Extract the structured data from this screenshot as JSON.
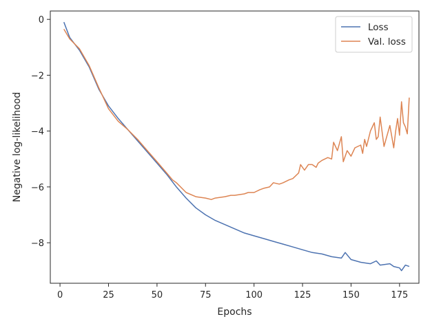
{
  "chart_data": {
    "type": "line",
    "title": "",
    "xlabel": "Epochs",
    "ylabel": "Negative log-likelihood",
    "xlim": [
      -5,
      185
    ],
    "ylim": [
      -9.45,
      0.3
    ],
    "xticks": [
      0,
      25,
      50,
      75,
      100,
      125,
      150,
      175
    ],
    "yticks": [
      0,
      -2,
      -4,
      -6,
      -8
    ],
    "grid": false,
    "legend_position": "top-right",
    "series": [
      {
        "name": "Loss",
        "color": "#4c72b0",
        "x": [
          2,
          5,
          10,
          15,
          20,
          25,
          30,
          35,
          40,
          45,
          50,
          55,
          60,
          65,
          70,
          75,
          80,
          85,
          90,
          95,
          100,
          105,
          110,
          115,
          120,
          125,
          130,
          135,
          140,
          145,
          147,
          150,
          155,
          160,
          163,
          165,
          170,
          172,
          175,
          176,
          178,
          180
        ],
        "y": [
          -0.1,
          -0.65,
          -1.1,
          -1.7,
          -2.5,
          -3.1,
          -3.55,
          -3.95,
          -4.35,
          -4.75,
          -5.15,
          -5.55,
          -6.0,
          -6.4,
          -6.75,
          -7.0,
          -7.2,
          -7.35,
          -7.5,
          -7.65,
          -7.75,
          -7.85,
          -7.95,
          -8.05,
          -8.15,
          -8.25,
          -8.35,
          -8.4,
          -8.5,
          -8.55,
          -8.35,
          -8.6,
          -8.7,
          -8.75,
          -8.65,
          -8.8,
          -8.75,
          -8.85,
          -8.9,
          -9.0,
          -8.8,
          -8.85
        ]
      },
      {
        "name": "Val. loss",
        "color": "#dd8452",
        "x": [
          2,
          5,
          10,
          15,
          20,
          25,
          30,
          35,
          40,
          45,
          50,
          55,
          58,
          60,
          65,
          70,
          75,
          78,
          80,
          85,
          88,
          90,
          95,
          97,
          100,
          103,
          105,
          108,
          110,
          113,
          115,
          118,
          120,
          123,
          124,
          126,
          128,
          130,
          132,
          133,
          135,
          138,
          140,
          141,
          143,
          145,
          146,
          148,
          150,
          152,
          155,
          156,
          157,
          158,
          160,
          162,
          163,
          164,
          165,
          167,
          168,
          170,
          171,
          172,
          173,
          174,
          175,
          176,
          177,
          178,
          179,
          180
        ],
        "y": [
          -0.35,
          -0.7,
          -1.05,
          -1.65,
          -2.45,
          -3.2,
          -3.65,
          -3.95,
          -4.3,
          -4.7,
          -5.1,
          -5.5,
          -5.75,
          -5.85,
          -6.2,
          -6.35,
          -6.4,
          -6.45,
          -6.4,
          -6.35,
          -6.3,
          -6.3,
          -6.25,
          -6.2,
          -6.2,
          -6.1,
          -6.05,
          -6.0,
          -5.85,
          -5.9,
          -5.85,
          -5.75,
          -5.7,
          -5.5,
          -5.2,
          -5.4,
          -5.2,
          -5.2,
          -5.3,
          -5.15,
          -5.05,
          -4.95,
          -5.0,
          -4.4,
          -4.7,
          -4.2,
          -5.1,
          -4.7,
          -4.9,
          -4.6,
          -4.5,
          -4.8,
          -4.3,
          -4.55,
          -4.0,
          -3.7,
          -4.3,
          -4.2,
          -3.5,
          -4.55,
          -4.3,
          -3.8,
          -4.2,
          -4.6,
          -4.0,
          -3.55,
          -4.15,
          -2.95,
          -3.7,
          -3.85,
          -4.1,
          -2.8
        ]
      }
    ]
  }
}
